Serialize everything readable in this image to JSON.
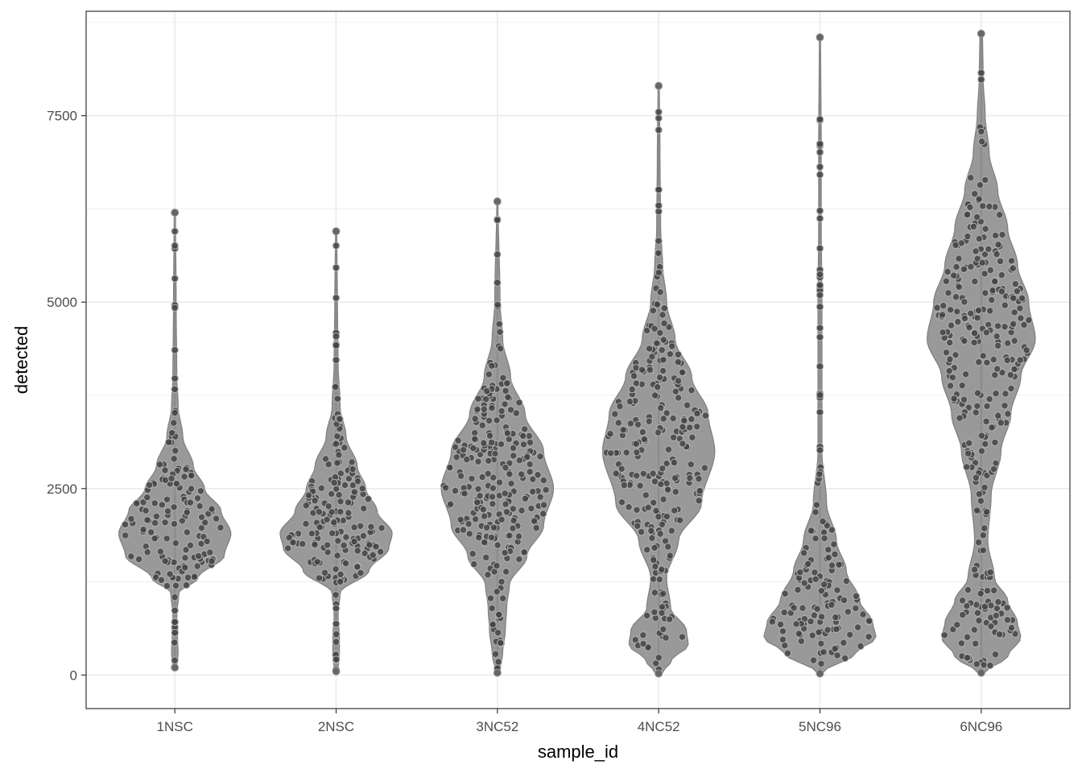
{
  "chart_data": {
    "type": "violin",
    "xlabel": "sample_id",
    "ylabel": "detected",
    "ylim": [
      -450,
      8900
    ],
    "y_ticks": [
      0,
      2500,
      5000,
      7500
    ],
    "y_tick_labels": [
      "0",
      "2500",
      "5000",
      "7500"
    ],
    "grid": true,
    "theme": "bw",
    "colors": {
      "violin_fill": "#999999",
      "points": "#444444",
      "point_edge": "#b3b3b3",
      "grid": "#ebebeb",
      "panel_border": "#333333"
    },
    "categories": [
      "1NSC",
      "2NSC",
      "3NC52",
      "4NC52",
      "5NC96",
      "6NC96"
    ],
    "series": [
      {
        "category": "1NSC",
        "min": 100,
        "max": 6200,
        "density": [
          [
            100,
            0.03
          ],
          [
            300,
            0.05
          ],
          [
            500,
            0.04
          ],
          [
            800,
            0.03
          ],
          [
            1100,
            0.06
          ],
          [
            1300,
            0.35
          ],
          [
            1600,
            0.75
          ],
          [
            1900,
            0.85
          ],
          [
            2200,
            0.7
          ],
          [
            2500,
            0.45
          ],
          [
            2800,
            0.28
          ],
          [
            3200,
            0.12
          ],
          [
            3600,
            0.05
          ],
          [
            4000,
            0.03
          ],
          [
            5000,
            0.02
          ],
          [
            6200,
            0.01
          ]
        ]
      },
      {
        "category": "2NSC",
        "min": 50,
        "max": 5950,
        "density": [
          [
            50,
            0.03
          ],
          [
            300,
            0.05
          ],
          [
            500,
            0.05
          ],
          [
            800,
            0.03
          ],
          [
            1100,
            0.06
          ],
          [
            1400,
            0.5
          ],
          [
            1700,
            0.8
          ],
          [
            1900,
            0.85
          ],
          [
            2200,
            0.62
          ],
          [
            2500,
            0.45
          ],
          [
            2800,
            0.32
          ],
          [
            3200,
            0.15
          ],
          [
            3600,
            0.06
          ],
          [
            4200,
            0.03
          ],
          [
            5000,
            0.02
          ],
          [
            5950,
            0.01
          ]
        ]
      },
      {
        "category": "3NC52",
        "min": 30,
        "max": 6350,
        "density": [
          [
            30,
            0.03
          ],
          [
            300,
            0.08
          ],
          [
            600,
            0.12
          ],
          [
            900,
            0.14
          ],
          [
            1200,
            0.18
          ],
          [
            1600,
            0.45
          ],
          [
            2000,
            0.7
          ],
          [
            2500,
            0.85
          ],
          [
            3000,
            0.7
          ],
          [
            3500,
            0.42
          ],
          [
            4000,
            0.2
          ],
          [
            4500,
            0.08
          ],
          [
            5000,
            0.04
          ],
          [
            6350,
            0.01
          ]
        ]
      },
      {
        "category": "4NC52",
        "min": 20,
        "max": 7900,
        "density": [
          [
            20,
            0.05
          ],
          [
            200,
            0.2
          ],
          [
            400,
            0.45
          ],
          [
            600,
            0.42
          ],
          [
            900,
            0.18
          ],
          [
            1300,
            0.12
          ],
          [
            1800,
            0.3
          ],
          [
            2300,
            0.65
          ],
          [
            3000,
            0.85
          ],
          [
            3500,
            0.75
          ],
          [
            4000,
            0.5
          ],
          [
            4500,
            0.25
          ],
          [
            5000,
            0.12
          ],
          [
            5500,
            0.06
          ],
          [
            6000,
            0.03
          ],
          [
            7000,
            0.02
          ],
          [
            7900,
            0.01
          ]
        ]
      },
      {
        "category": "5NC96",
        "min": 20,
        "max": 8550,
        "density": [
          [
            20,
            0.03
          ],
          [
            300,
            0.55
          ],
          [
            500,
            0.85
          ],
          [
            700,
            0.8
          ],
          [
            1000,
            0.6
          ],
          [
            1400,
            0.4
          ],
          [
            1800,
            0.25
          ],
          [
            2300,
            0.1
          ],
          [
            3000,
            0.03
          ],
          [
            4000,
            0.03
          ],
          [
            5000,
            0.03
          ],
          [
            6000,
            0.02
          ],
          [
            7000,
            0.02
          ],
          [
            8550,
            0.01
          ]
        ]
      },
      {
        "category": "6NC96",
        "min": 30,
        "max": 8600,
        "density": [
          [
            30,
            0.05
          ],
          [
            250,
            0.4
          ],
          [
            500,
            0.6
          ],
          [
            700,
            0.55
          ],
          [
            1000,
            0.4
          ],
          [
            1300,
            0.2
          ],
          [
            1800,
            0.1
          ],
          [
            2400,
            0.15
          ],
          [
            3000,
            0.3
          ],
          [
            3500,
            0.45
          ],
          [
            4000,
            0.6
          ],
          [
            4500,
            0.82
          ],
          [
            5000,
            0.72
          ],
          [
            5500,
            0.55
          ],
          [
            6000,
            0.4
          ],
          [
            6500,
            0.25
          ],
          [
            7000,
            0.12
          ],
          [
            7500,
            0.06
          ],
          [
            8000,
            0.03
          ],
          [
            8600,
            0.02
          ]
        ]
      }
    ]
  }
}
